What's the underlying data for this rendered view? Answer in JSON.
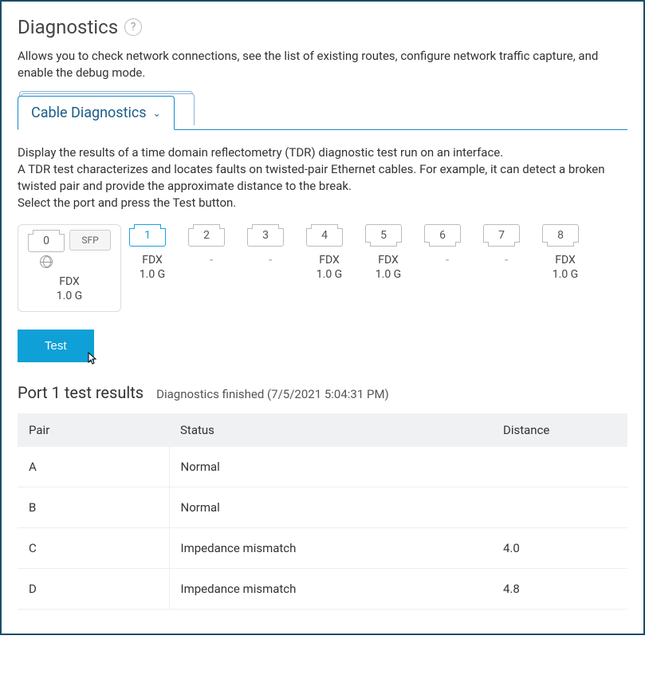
{
  "header": {
    "title": "Diagnostics",
    "help_tooltip": "?"
  },
  "intro": "Allows you to check network connections, see the list of existing routes, configure network traffic capture, and enable the debug mode.",
  "tab": {
    "label": "Cable Diagnostics"
  },
  "description": "Display the results of a time domain reflectometry (TDR) diagnostic test run on an interface.\nA TDR test characterizes and locates faults on twisted-pair Ethernet cables. For example, it can detect a broken twisted pair and provide the approximate distance to the break.\nSelect the port and press the Test button.",
  "ports": {
    "zero": {
      "num": "0",
      "sfp": "SFP",
      "duplex": "FDX",
      "speed": "1.0 G"
    },
    "list": [
      {
        "num": "1",
        "duplex": "FDX",
        "speed": "1.0 G",
        "selected": true,
        "notch": "up"
      },
      {
        "num": "2",
        "duplex": "-",
        "speed": "",
        "notch": "up"
      },
      {
        "num": "3",
        "duplex": "-",
        "speed": "",
        "notch": "up"
      },
      {
        "num": "4",
        "duplex": "FDX",
        "speed": "1.0 G",
        "notch": "up"
      },
      {
        "num": "5",
        "duplex": "FDX",
        "speed": "1.0 G",
        "notch": "down"
      },
      {
        "num": "6",
        "duplex": "-",
        "speed": "",
        "notch": "down"
      },
      {
        "num": "7",
        "duplex": "-",
        "speed": "",
        "notch": "down"
      },
      {
        "num": "8",
        "duplex": "FDX",
        "speed": "1.0 G",
        "notch": "down"
      }
    ]
  },
  "test_button": "Test",
  "results": {
    "title": "Port 1 test results",
    "status": "Diagnostics finished (7/5/2021 5:04:31 PM)",
    "columns": {
      "pair": "Pair",
      "status": "Status",
      "distance": "Distance"
    },
    "rows": [
      {
        "pair": "A",
        "status": "Normal",
        "distance": ""
      },
      {
        "pair": "B",
        "status": "Normal",
        "distance": ""
      },
      {
        "pair": "C",
        "status": "Impedance mismatch",
        "distance": "4.0"
      },
      {
        "pair": "D",
        "status": "Impedance mismatch",
        "distance": "4.8"
      }
    ]
  }
}
